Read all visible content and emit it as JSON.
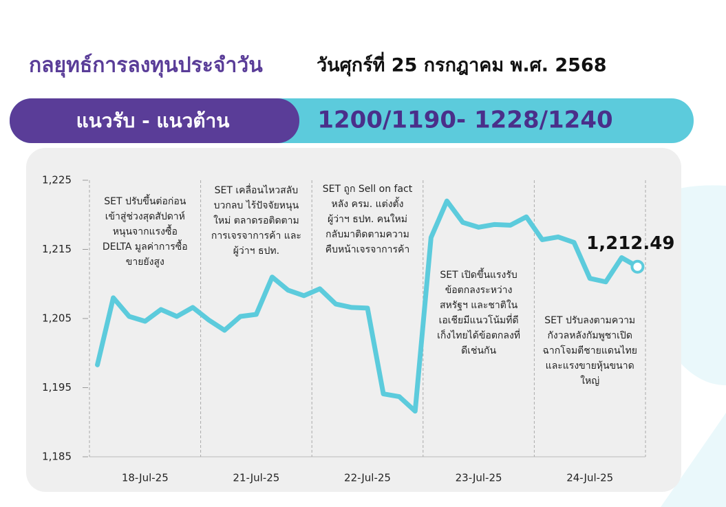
{
  "header": {
    "title": "กลยุทธ์การลงทุนประจำวัน",
    "date": "วันศุกร์ที่ 25 กรกฎาคม พ.ศ. 2568"
  },
  "banner": {
    "label": "แนวรับ - แนวต้าน",
    "levels": "1200/1190- 1228/1240"
  },
  "chart_data": {
    "type": "line",
    "categories": [
      null,
      null,
      null,
      "18-Jul-25",
      null,
      null,
      null,
      null,
      null,
      null,
      "21-Jul-25",
      null,
      null,
      null,
      null,
      null,
      null,
      "22-Jul-25",
      null,
      null,
      null,
      null,
      null,
      null,
      "23-Jul-25",
      null,
      null,
      null,
      null,
      null,
      null,
      "24-Jul-25",
      null,
      null,
      null
    ],
    "series": [
      {
        "name": "SET",
        "color": "#5ccbdc",
        "values": [
          1198.3,
          1208.0,
          1205.3,
          1204.6,
          1206.3,
          1205.3,
          1206.6,
          1204.8,
          1203.3,
          1205.3,
          1205.6,
          1211.0,
          1209.1,
          1208.3,
          1209.3,
          1207.1,
          1206.6,
          1206.5,
          1194.1,
          1193.7,
          1191.6,
          1216.7,
          1222.0,
          1218.9,
          1218.2,
          1218.6,
          1218.5,
          1219.7,
          1216.4,
          1216.8,
          1216.0,
          1210.8,
          1210.3,
          1213.8,
          1212.49
        ],
        "value_labels": [
          null,
          null,
          null,
          null,
          null,
          null,
          null,
          null,
          null,
          null,
          null,
          null,
          null,
          null,
          null,
          null,
          null,
          null,
          null,
          null,
          null,
          null,
          null,
          null,
          null,
          null,
          null,
          null,
          null,
          null,
          null,
          null,
          null,
          null,
          "1,212.49"
        ]
      }
    ],
    "ylim": [
      1185,
      1225
    ],
    "yticks": [
      {
        "value": 1185,
        "label": "1,185"
      },
      {
        "value": 1195,
        "label": "1,195"
      },
      {
        "value": 1205,
        "label": "1,205"
      },
      {
        "value": 1215,
        "label": "1,215"
      },
      {
        "value": 1225,
        "label": "1,225"
      }
    ],
    "annotations": [
      {
        "lines": [
          "SET ปรับขึ้นต่อก่อน",
          "เข้าสู่ช่วงสุดสัปดาห์",
          "หนุนจากแรงซื้อ",
          "DELTA มูลค่าการซื้อ",
          "ขายยังสูง"
        ]
      },
      {
        "lines": [
          "SET เคลื่อนไหวสลับ",
          "บวกลบ ไร้ปัจจัยหนุน",
          "ใหม่ ตลาดรอติดตาม",
          "การเจรจาการค้า และ",
          "ผู้ว่าฯ ธปท."
        ]
      },
      {
        "lines": [
          "SET ถูก Sell on fact",
          "หลัง ครม. แต่งตั้ง",
          "ผู้ว่าฯ ธปท. คนใหม่",
          "กลับมาติดตามความ",
          "คืบหน้าเจรจาการค้า"
        ]
      },
      {
        "lines": [
          "SET เปิดขึ้นแรงรับ",
          "ข้อตกลงระหว่าง",
          "สหรัฐฯ และชาติใน",
          "เอเชียมีแนวโน้มที่ดี",
          "เก็งไทยได้ข้อตกลงที่",
          "ดีเช่นกัน"
        ]
      },
      {
        "lines": [
          "SET ปรับลงตามความ",
          "กังวลหลังกัมพูชาเปิด",
          "ฉากโจมตีชายแดนไทย",
          "และแรงขายหุ้นขนาด",
          "ใหญ่"
        ]
      }
    ]
  }
}
